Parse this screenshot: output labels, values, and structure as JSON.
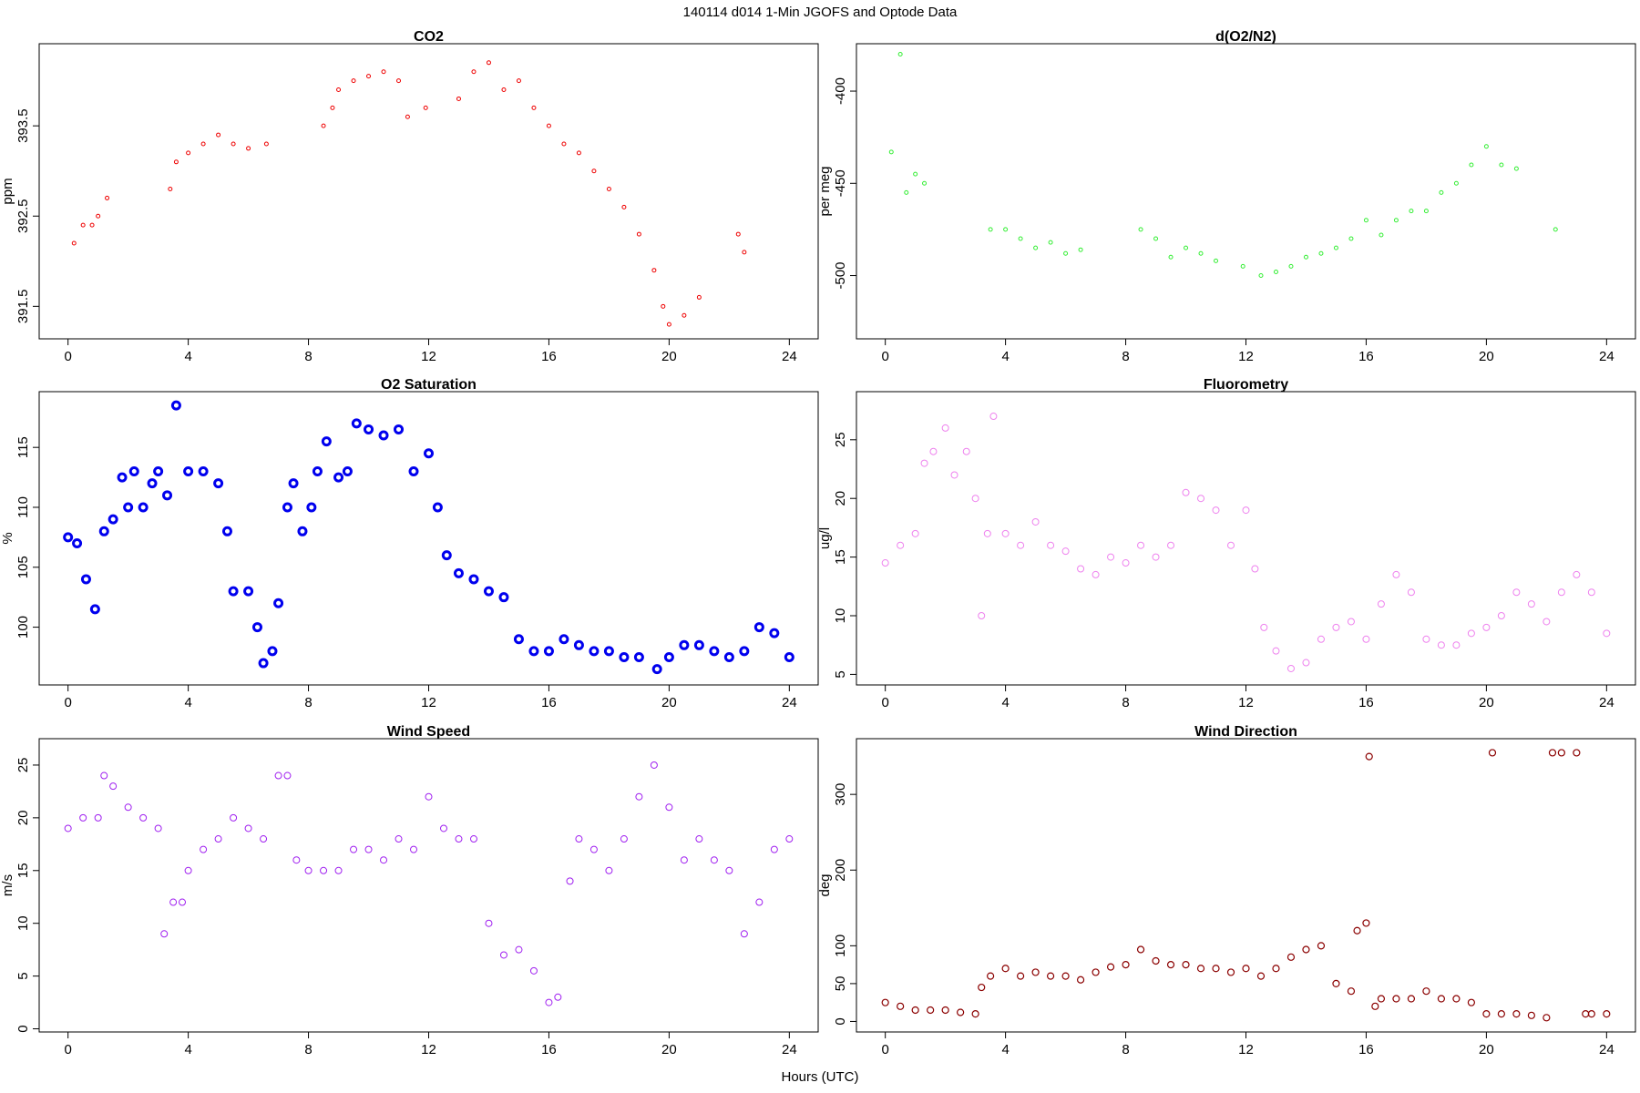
{
  "title": "140114   d014   1-Min  JGOFS and Optode Data",
  "xlabel": "Hours (UTC)",
  "chart_data": [
    {
      "type": "scatter",
      "title": "CO2",
      "ylabel": "ppm",
      "color": "#ee0000",
      "xlim": [
        -0.96,
        24.96
      ],
      "xticks": [
        0,
        4,
        8,
        12,
        16,
        20,
        24
      ],
      "ylim": [
        391.14,
        394.41
      ],
      "yticks": [
        391.5,
        392.5,
        393.5
      ],
      "x": [
        0.2,
        0.5,
        0.8,
        1.0,
        1.3,
        3.4,
        3.6,
        4.0,
        4.5,
        5.0,
        5.5,
        6.0,
        6.6,
        8.5,
        8.8,
        9.0,
        9.5,
        10.0,
        10.5,
        11.0,
        11.3,
        11.9,
        13.0,
        13.5,
        14.0,
        14.5,
        15.0,
        15.5,
        16.0,
        16.5,
        17.0,
        17.5,
        18.0,
        18.5,
        19.0,
        19.5,
        19.8,
        20.0,
        20.5,
        21.0,
        22.3,
        22.5
      ],
      "values": [
        392.2,
        392.4,
        392.4,
        392.5,
        392.7,
        392.8,
        393.1,
        393.2,
        393.3,
        393.4,
        393.3,
        393.25,
        393.3,
        393.5,
        393.7,
        393.9,
        394.0,
        394.05,
        394.1,
        394.0,
        393.6,
        393.7,
        393.8,
        394.1,
        394.2,
        393.9,
        394.0,
        393.7,
        393.5,
        393.3,
        393.2,
        393.0,
        392.8,
        392.6,
        392.3,
        391.9,
        391.5,
        391.3,
        391.4,
        391.6,
        392.3,
        392.1
      ]
    },
    {
      "type": "scatter",
      "title": "d(O2/N2)",
      "ylabel": "per meg",
      "color": "#33ee33",
      "xlim": [
        -0.96,
        24.96
      ],
      "xticks": [
        0,
        4,
        8,
        12,
        16,
        20,
        24
      ],
      "ylim": [
        -534.3,
        -374.3
      ],
      "yticks": [
        -500,
        -450,
        -400
      ],
      "x": [
        0.2,
        0.5,
        0.7,
        1.0,
        1.3,
        3.5,
        4.0,
        4.5,
        5.0,
        5.5,
        6.0,
        6.5,
        8.5,
        9.0,
        9.5,
        10.0,
        10.5,
        11.0,
        11.9,
        12.5,
        13.0,
        13.5,
        14.0,
        14.5,
        15.0,
        15.5,
        16.0,
        16.5,
        17.0,
        17.5,
        18.0,
        18.5,
        19.0,
        19.5,
        20.0,
        20.5,
        21.0,
        22.3
      ],
      "values": [
        -433,
        -380,
        -455,
        -445,
        -450,
        -475,
        -475,
        -480,
        -485,
        -482,
        -488,
        -486,
        -475,
        -480,
        -490,
        -485,
        -488,
        -492,
        -495,
        -500,
        -498,
        -495,
        -490,
        -488,
        -485,
        -480,
        -470,
        -478,
        -470,
        -465,
        -465,
        -455,
        -450,
        -440,
        -430,
        -440,
        -442,
        -475
      ]
    },
    {
      "type": "scatter",
      "title": "O2 Saturation",
      "ylabel": "%",
      "color": "#0000ee",
      "xlim": [
        -0.96,
        24.96
      ],
      "xticks": [
        0,
        4,
        8,
        12,
        16,
        20,
        24
      ],
      "ylim": [
        95.18,
        119.65
      ],
      "yticks": [
        100,
        105,
        110,
        115
      ],
      "x": [
        0,
        0.3,
        0.6,
        0.9,
        1.2,
        1.5,
        1.8,
        2.0,
        2.2,
        2.5,
        2.8,
        3.0,
        3.3,
        3.6,
        4.0,
        4.5,
        5.0,
        5.3,
        5.5,
        6.0,
        6.3,
        6.5,
        6.8,
        7.0,
        7.3,
        7.5,
        7.8,
        8.1,
        8.3,
        8.6,
        9.0,
        9.3,
        9.6,
        10.0,
        10.5,
        11.0,
        11.5,
        12.0,
        12.3,
        12.6,
        13.0,
        13.5,
        14.0,
        14.5,
        15.0,
        15.5,
        16.0,
        16.5,
        17.0,
        17.5,
        18.0,
        18.5,
        19.0,
        19.6,
        20.0,
        20.5,
        21.0,
        21.5,
        22.0,
        22.5,
        23.0,
        23.5,
        24.0
      ],
      "values": [
        107.5,
        107,
        104,
        101.5,
        108,
        109,
        112.5,
        110,
        113,
        110,
        112,
        113,
        111,
        118.5,
        113,
        113,
        112,
        108,
        103,
        103,
        100,
        97,
        98,
        102,
        110,
        112,
        108,
        110,
        113,
        115.5,
        112.5,
        113,
        117,
        116.5,
        116,
        116.5,
        113,
        114.5,
        110,
        106,
        104.5,
        104,
        103,
        102.5,
        99,
        98,
        98,
        99,
        98.5,
        98,
        98,
        97.5,
        97.5,
        96.5,
        97.5,
        98.5,
        98.5,
        98,
        97.5,
        98,
        100,
        99.5,
        97.5
      ]
    },
    {
      "type": "scatter",
      "title": "Fluorometry",
      "ylabel": "ug/l",
      "color": "#ee82ee",
      "xlim": [
        -0.96,
        24.96
      ],
      "xticks": [
        0,
        4,
        8,
        12,
        16,
        20,
        24
      ],
      "ylim": [
        4.1,
        29.1
      ],
      "yticks": [
        5,
        10,
        15,
        20,
        25
      ],
      "x": [
        0,
        0.5,
        1.0,
        1.3,
        1.6,
        2.0,
        2.3,
        2.7,
        3.0,
        3.2,
        3.4,
        3.6,
        4.0,
        4.5,
        5.0,
        5.5,
        6.0,
        6.5,
        7.0,
        7.5,
        8.0,
        8.5,
        9.0,
        9.5,
        10.0,
        10.5,
        11.0,
        11.5,
        12.0,
        12.3,
        12.6,
        13.0,
        13.5,
        14.0,
        14.5,
        15.0,
        15.5,
        16.0,
        16.5,
        17.0,
        17.5,
        18.0,
        18.5,
        19.0,
        19.5,
        20.0,
        20.5,
        21.0,
        21.5,
        22.0,
        22.5,
        23.0,
        23.5,
        24.0
      ],
      "values": [
        14.5,
        16,
        17,
        23,
        24,
        26,
        22,
        24,
        20,
        10,
        17,
        27,
        17,
        16,
        18,
        16,
        15.5,
        14,
        13.5,
        15,
        14.5,
        16,
        15,
        16,
        20.5,
        20,
        19,
        16,
        19,
        14,
        9,
        7,
        5.5,
        6,
        8,
        9,
        9.5,
        8,
        11,
        13.5,
        12,
        8,
        7.5,
        7.5,
        8.5,
        9,
        10,
        12,
        11,
        9.5,
        12,
        13.5,
        12,
        8.5
      ]
    },
    {
      "type": "scatter",
      "title": "Wind Speed",
      "ylabel": "m/s",
      "color": "#a020f0",
      "xlim": [
        -0.96,
        24.96
      ],
      "xticks": [
        0,
        4,
        8,
        12,
        16,
        20,
        24
      ],
      "ylim": [
        -0.3,
        27.5
      ],
      "yticks": [
        0,
        5,
        10,
        15,
        20,
        25
      ],
      "x": [
        0,
        0.5,
        1.0,
        1.2,
        1.5,
        2.0,
        2.5,
        3.0,
        3.2,
        3.5,
        3.8,
        4.0,
        4.5,
        5.0,
        5.5,
        6.0,
        6.5,
        7.0,
        7.3,
        7.6,
        8.0,
        8.5,
        9.0,
        9.5,
        10.0,
        10.5,
        11.0,
        11.5,
        12.0,
        12.5,
        13.0,
        13.5,
        14.0,
        14.5,
        15.0,
        15.5,
        16.0,
        16.3,
        16.7,
        17.0,
        17.5,
        18.0,
        18.5,
        19.0,
        19.5,
        20.0,
        20.5,
        21.0,
        21.5,
        22.0,
        22.5,
        23.0,
        23.5,
        24.0
      ],
      "values": [
        19,
        20,
        20,
        24,
        23,
        21,
        20,
        19,
        9,
        12,
        12,
        15,
        17,
        18,
        20,
        19,
        18,
        24,
        24,
        16,
        15,
        15,
        15,
        17,
        17,
        16,
        18,
        17,
        22,
        19,
        18,
        18,
        10,
        7,
        7.5,
        5.5,
        2.5,
        3,
        14,
        18,
        17,
        15,
        18,
        22,
        25,
        21,
        16,
        18,
        16,
        15,
        9,
        12,
        17,
        18
      ]
    },
    {
      "type": "scatter",
      "title": "Wind Direction",
      "ylabel": "deg",
      "color": "#8b0000",
      "xlim": [
        -0.96,
        24.96
      ],
      "xticks": [
        0,
        4,
        8,
        12,
        16,
        20,
        24
      ],
      "ylim": [
        -13.9,
        373.6
      ],
      "yticks": [
        0,
        50,
        100,
        200,
        300
      ],
      "x": [
        0,
        0.5,
        1.0,
        1.5,
        2.0,
        2.5,
        3.0,
        3.2,
        3.5,
        4.0,
        4.5,
        5.0,
        5.5,
        6.0,
        6.5,
        7.0,
        7.5,
        8.0,
        8.5,
        9.0,
        9.5,
        10.0,
        10.5,
        11.0,
        11.5,
        12.0,
        12.5,
        13.0,
        13.5,
        14.0,
        14.5,
        15.0,
        15.5,
        15.7,
        16.0,
        16.1,
        16.3,
        16.5,
        17.0,
        17.5,
        18.0,
        18.5,
        19.0,
        19.5,
        20.0,
        20.2,
        20.5,
        21.0,
        21.5,
        22.0,
        22.2,
        22.5,
        23.0,
        23.3,
        23.5,
        24.0
      ],
      "values": [
        25,
        20,
        15,
        15,
        15,
        12,
        10,
        45,
        60,
        70,
        60,
        65,
        60,
        60,
        55,
        65,
        72,
        75,
        95,
        80,
        75,
        75,
        70,
        70,
        65,
        70,
        60,
        70,
        85,
        95,
        100,
        50,
        40,
        120,
        130,
        350,
        20,
        30,
        30,
        30,
        40,
        30,
        30,
        25,
        10,
        355,
        10,
        10,
        8,
        5,
        355,
        355,
        355,
        10,
        10,
        10
      ]
    }
  ]
}
